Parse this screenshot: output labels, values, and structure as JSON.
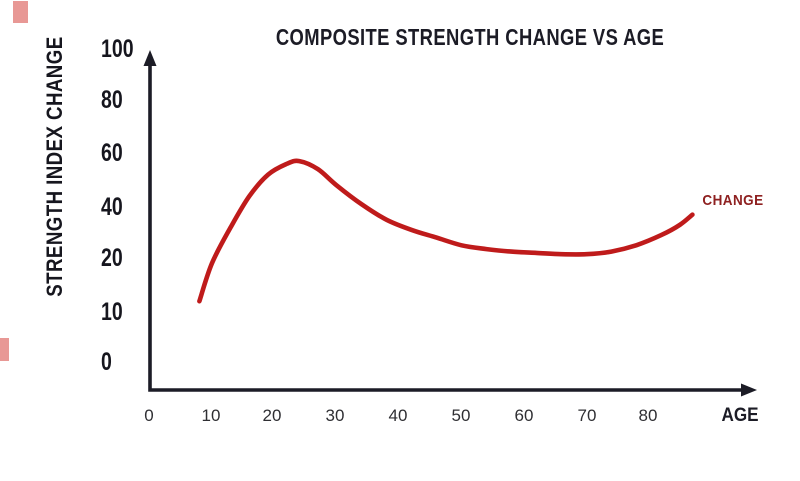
{
  "title": "COMPOSITE STRENGTH CHANGE VS AGE",
  "colors": {
    "curve": "#bf1b1b",
    "series_label_color": "#8e2020",
    "axis": "#1c1c26",
    "x_tick_color": "#2f2f33",
    "artifact": "#d9534f",
    "background": "#ffffff"
  },
  "chart_data": {
    "type": "line",
    "title": "COMPOSITE STRENGTH CHANGE VS AGE",
    "xlabel": "AGE",
    "ylabel": "STRENGTH INDEX CHANGE",
    "series_label": "CHANGE",
    "grid": false,
    "legend_position": "right-of-curve-end",
    "x_ticks": [
      "0",
      "10",
      "20",
      "30",
      "40",
      "50",
      "60",
      "70",
      "80"
    ],
    "y_ticks": [
      "100",
      "80",
      "60",
      "40",
      "20",
      "10",
      "0"
    ],
    "y_tick_values_top_to_bottom": [
      100,
      80,
      60,
      40,
      20,
      10,
      0
    ],
    "axis_note": "y tick labels 0,10,20,40,60,80,100 are drawn evenly spaced (non-linear scale); axes end in arrowheads; no gridlines or tick marks",
    "x_range_shown": [
      0,
      88
    ],
    "series": [
      {
        "name": "CHANGE",
        "color": "#bf1b1b",
        "points": [
          [
            8,
            12
          ],
          [
            10,
            19
          ],
          [
            13,
            32
          ],
          [
            16,
            44
          ],
          [
            19,
            52
          ],
          [
            22,
            56
          ],
          [
            24,
            57
          ],
          [
            27,
            54
          ],
          [
            30,
            48
          ],
          [
            34,
            41
          ],
          [
            38,
            35
          ],
          [
            42,
            31
          ],
          [
            46,
            28
          ],
          [
            50,
            25
          ],
          [
            54,
            23.5
          ],
          [
            58,
            22.5
          ],
          [
            62,
            22
          ],
          [
            66,
            21.5
          ],
          [
            70,
            21.5
          ],
          [
            74,
            22.5
          ],
          [
            78,
            25
          ],
          [
            82,
            29
          ],
          [
            85,
            33
          ],
          [
            87,
            37
          ]
        ]
      }
    ]
  }
}
